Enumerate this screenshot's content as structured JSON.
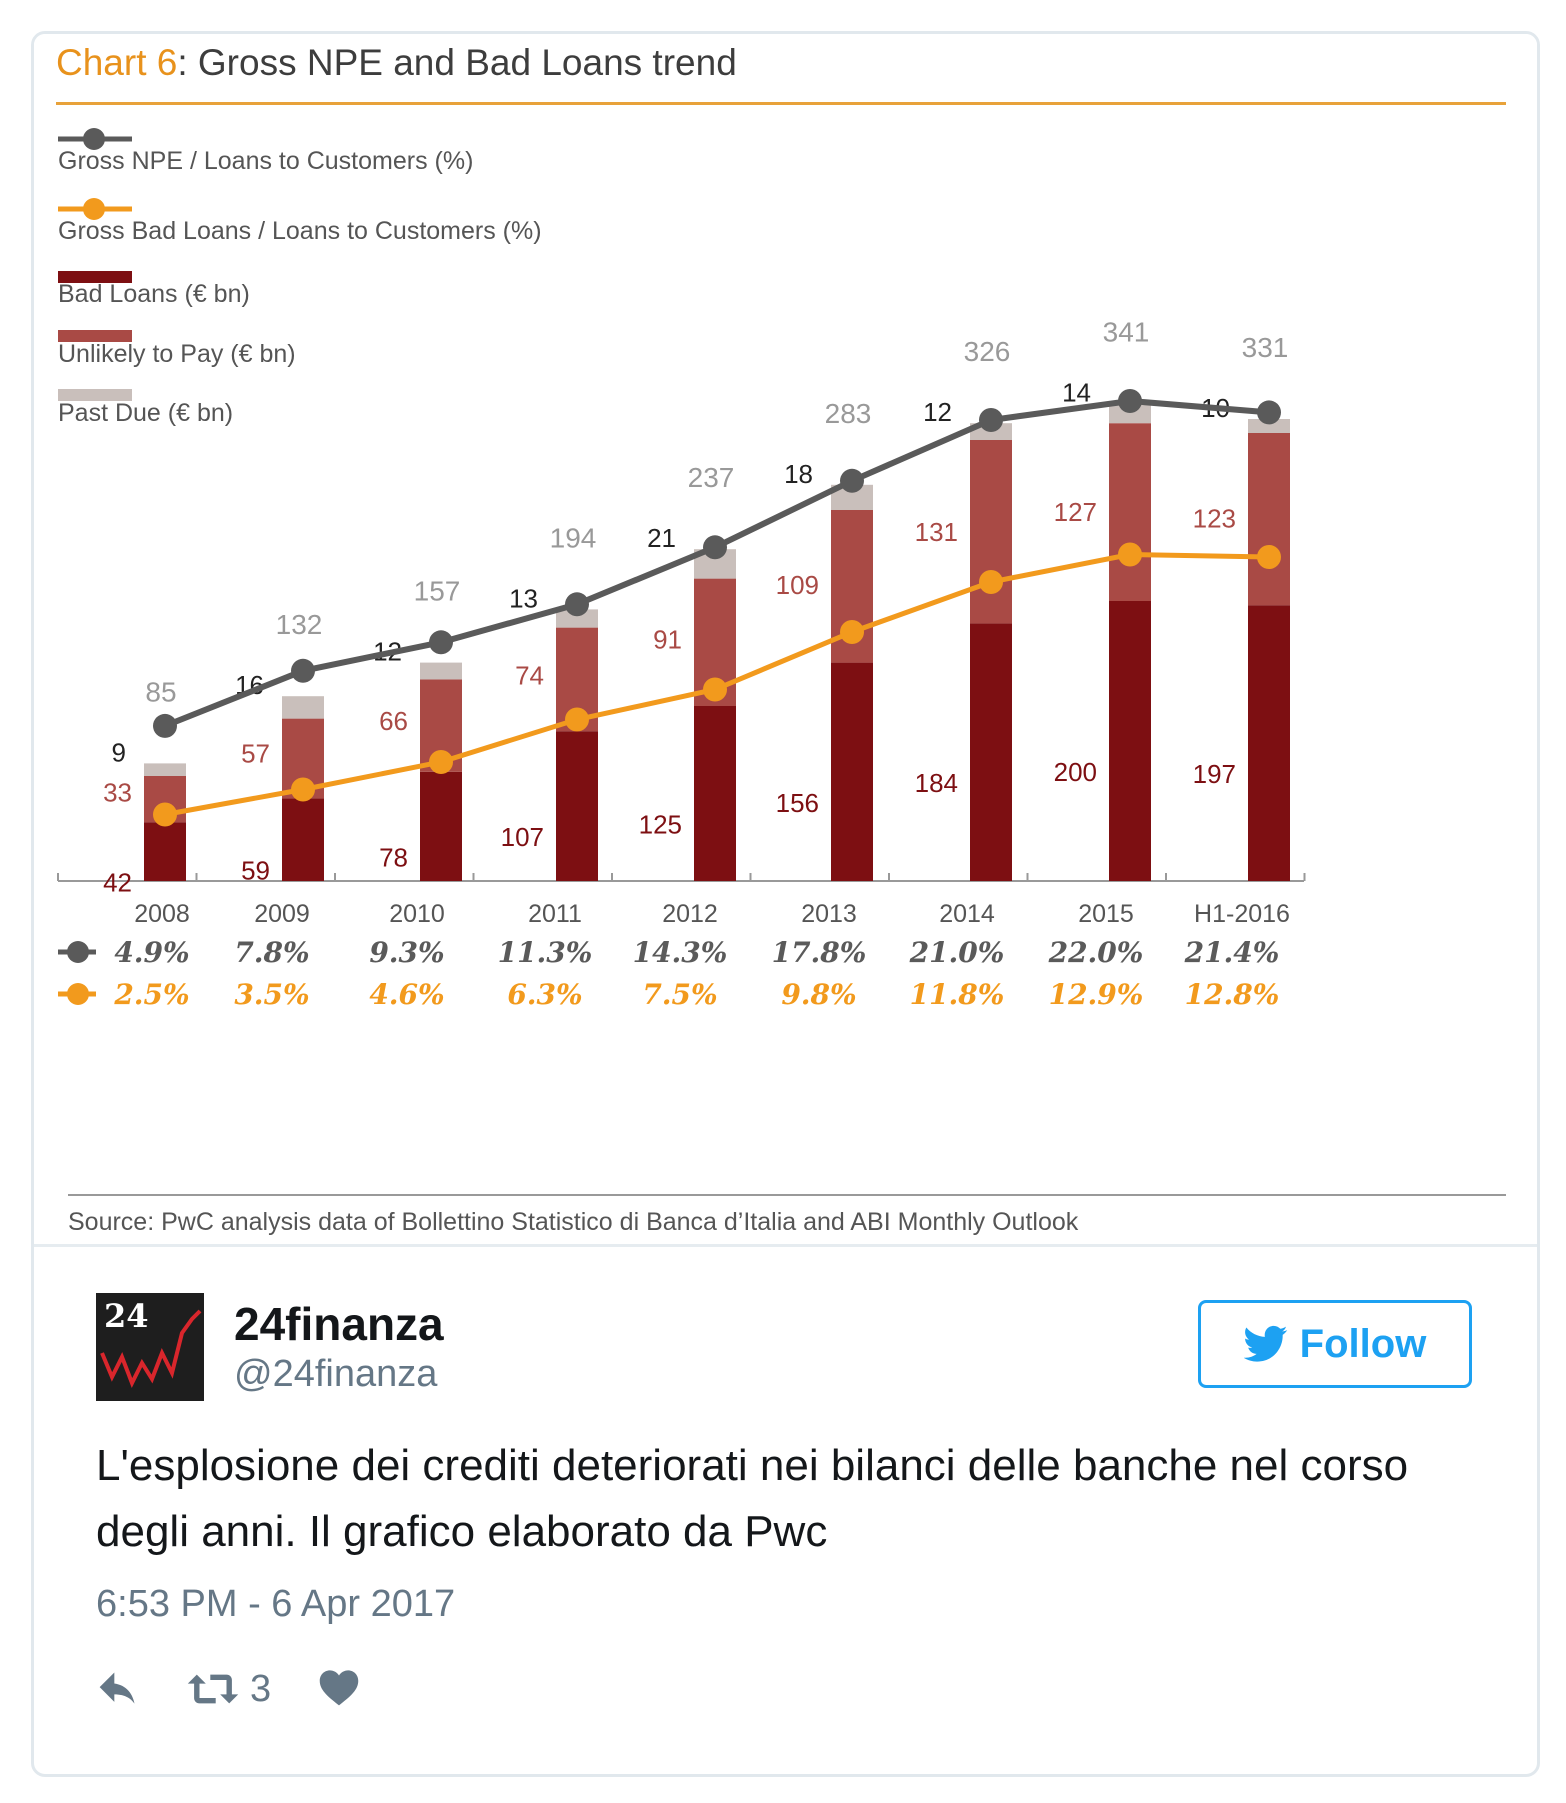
{
  "chart": {
    "title_prefix": "Chart 6",
    "title_rest": ": Gross NPE and Bad Loans trend",
    "legend": [
      {
        "label": "Gross NPE / Loans to Customers (%)",
        "kind": "line",
        "color": "#5a5a5a"
      },
      {
        "label": "Gross Bad Loans / Loans to Customers (%)",
        "kind": "line",
        "color": "#f29a1d"
      },
      {
        "label": "Bad Loans (€ bn)",
        "kind": "bar",
        "color": "#7d0f12"
      },
      {
        "label": "Unlikely to Pay (€ bn)",
        "kind": "bar",
        "color": "#a94a45"
      },
      {
        "label": "Past Due (€ bn)",
        "kind": "bar",
        "color": "#c9bfbb"
      }
    ],
    "source": "Source: PwC analysis data of Bollettino Statistico di Banca d’Italia and ABI Monthly Outlook"
  },
  "chart_data": {
    "type": "bar",
    "stacked": true,
    "title": "Gross NPE and Bad Loans trend",
    "categories": [
      "2008",
      "2009",
      "2010",
      "2011",
      "2012",
      "2013",
      "2014",
      "2015",
      "H1-2016"
    ],
    "series": [
      {
        "name": "Bad Loans (€ bn)",
        "values": [
          42,
          59,
          78,
          107,
          125,
          156,
          184,
          200,
          197
        ]
      },
      {
        "name": "Unlikely to Pay (€ bn)",
        "values": [
          33,
          57,
          66,
          74,
          91,
          109,
          131,
          127,
          123
        ]
      },
      {
        "name": "Past Due (€ bn)",
        "values": [
          9,
          16,
          12,
          13,
          21,
          18,
          12,
          14,
          10
        ]
      }
    ],
    "totals": [
      85,
      132,
      157,
      194,
      237,
      283,
      326,
      341,
      331
    ],
    "lines": [
      {
        "name": "Gross NPE / Loans to Customers (%)",
        "values": [
          4.9,
          7.8,
          9.3,
          11.3,
          14.3,
          17.8,
          21.0,
          22.0,
          21.4
        ],
        "labels": [
          "4.9%",
          "7.8%",
          "9.3%",
          "11.3%",
          "14.3%",
          "17.8%",
          "21.0%",
          "22.0%",
          "21.4%"
        ]
      },
      {
        "name": "Gross Bad Loans / Loans to Customers (%)",
        "values": [
          2.5,
          3.5,
          4.6,
          6.3,
          7.5,
          9.8,
          11.8,
          12.9,
          12.8
        ],
        "labels": [
          "2.5%",
          "3.5%",
          "4.6%",
          "6.3%",
          "7.5%",
          "9.8%",
          "11.8%",
          "12.9%",
          "12.8%"
        ]
      }
    ],
    "colors": {
      "bad_loans": "#7d0f12",
      "utp": "#a94a45",
      "past_due": "#c9bfbb",
      "npe_line": "#5a5a5a",
      "bad_line": "#f29a1d"
    },
    "grid": false,
    "legend_position": "top-left"
  },
  "tweet": {
    "display_name": "24finanza",
    "handle": "@24finanza",
    "avatar_text": "24",
    "follow_label": "Follow",
    "text": "L'esplosione dei crediti deteriorati nei bilanci delle banche nel corso degli anni. Il grafico elaborato da Pwc",
    "timestamp": "6:53 PM - 6 Apr 2017",
    "retweet_count": "3",
    "accent_color": "#1da1f2"
  }
}
